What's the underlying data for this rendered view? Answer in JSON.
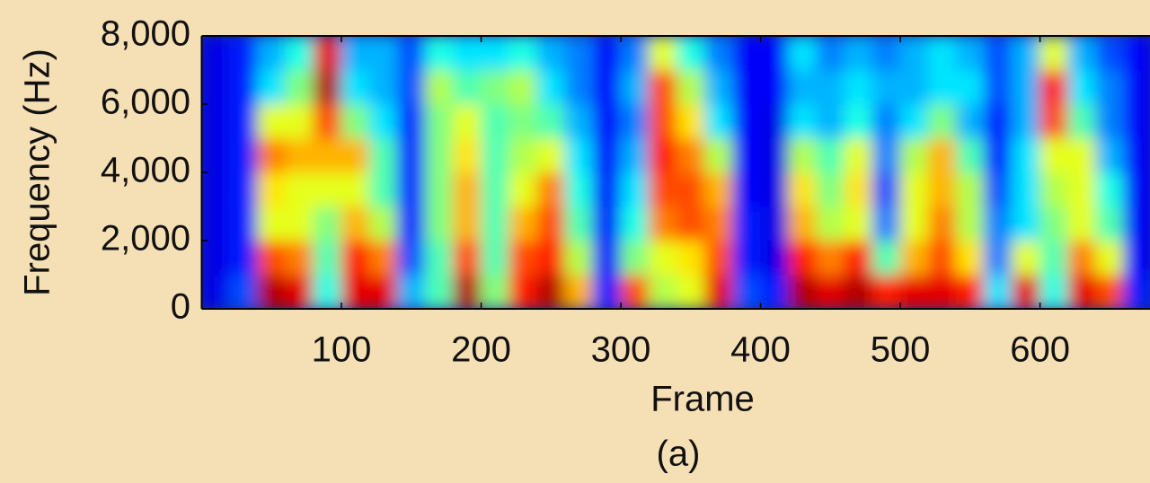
{
  "chart_data": {
    "type": "heatmap",
    "xlabel": "Frame",
    "ylabel": "Frequency (Hz)",
    "caption": "(a)",
    "colormap": "jet",
    "xlim": [
      0,
      680
    ],
    "ylim": [
      0,
      8000
    ],
    "xticks": [
      100,
      200,
      300,
      400,
      500,
      600
    ],
    "yticks": [
      0,
      {
        "value": 2000,
        "label": "2,000"
      },
      {
        "value": 4000,
        "label": "4,000"
      },
      {
        "value": 6000,
        "label": "6,000"
      },
      {
        "value": 8000,
        "label": "8,000"
      }
    ],
    "x": [
      10,
      30,
      50,
      70,
      90,
      110,
      130,
      150,
      170,
      190,
      210,
      230,
      250,
      270,
      290,
      310,
      330,
      350,
      370,
      390,
      410,
      430,
      450,
      470,
      490,
      510,
      530,
      550,
      570,
      590,
      610,
      630,
      650,
      670
    ],
    "y": [
      500,
      1500,
      2500,
      3500,
      4500,
      5500,
      6500,
      7500
    ],
    "z": [
      [
        0.1,
        0.1,
        0.1,
        0.1,
        0.1,
        0.1,
        0.1,
        0.1
      ],
      [
        0.2,
        0.15,
        0.15,
        0.15,
        0.15,
        0.15,
        0.15,
        0.15
      ],
      [
        0.95,
        0.8,
        0.6,
        0.65,
        0.75,
        0.6,
        0.35,
        0.3
      ],
      [
        0.9,
        0.75,
        0.6,
        0.6,
        0.7,
        0.6,
        0.5,
        0.4
      ],
      [
        0.4,
        0.45,
        0.5,
        0.6,
        0.7,
        0.8,
        0.95,
        0.9
      ],
      [
        0.9,
        0.85,
        0.7,
        0.6,
        0.7,
        0.5,
        0.35,
        0.3
      ],
      [
        0.9,
        0.75,
        0.55,
        0.45,
        0.45,
        0.35,
        0.3,
        0.3
      ],
      [
        0.3,
        0.2,
        0.15,
        0.15,
        0.15,
        0.15,
        0.2,
        0.2
      ],
      [
        0.45,
        0.45,
        0.5,
        0.5,
        0.5,
        0.5,
        0.55,
        0.4
      ],
      [
        0.95,
        0.8,
        0.7,
        0.7,
        0.65,
        0.6,
        0.45,
        0.35
      ],
      [
        0.5,
        0.45,
        0.45,
        0.45,
        0.45,
        0.45,
        0.5,
        0.35
      ],
      [
        0.85,
        0.8,
        0.7,
        0.6,
        0.55,
        0.5,
        0.55,
        0.4
      ],
      [
        0.95,
        0.85,
        0.8,
        0.75,
        0.6,
        0.45,
        0.35,
        0.3
      ],
      [
        0.7,
        0.55,
        0.45,
        0.4,
        0.35,
        0.3,
        0.25,
        0.25
      ],
      [
        0.15,
        0.12,
        0.12,
        0.12,
        0.12,
        0.12,
        0.12,
        0.12
      ],
      [
        0.8,
        0.5,
        0.4,
        0.35,
        0.3,
        0.25,
        0.3,
        0.25
      ],
      [
        0.55,
        0.6,
        0.75,
        0.8,
        0.85,
        0.8,
        0.8,
        0.6
      ],
      [
        0.6,
        0.65,
        0.8,
        0.8,
        0.75,
        0.65,
        0.55,
        0.4
      ],
      [
        0.9,
        0.8,
        0.75,
        0.7,
        0.55,
        0.35,
        0.3,
        0.25
      ],
      [
        0.2,
        0.15,
        0.15,
        0.12,
        0.12,
        0.12,
        0.12,
        0.12
      ],
      [
        0.15,
        0.1,
        0.1,
        0.1,
        0.1,
        0.1,
        0.12,
        0.12
      ],
      [
        0.95,
        0.85,
        0.7,
        0.65,
        0.55,
        0.35,
        0.3,
        0.35
      ],
      [
        0.9,
        0.75,
        0.55,
        0.5,
        0.45,
        0.3,
        0.3,
        0.25
      ],
      [
        0.95,
        0.85,
        0.6,
        0.65,
        0.6,
        0.4,
        0.35,
        0.3
      ],
      [
        0.85,
        0.45,
        0.25,
        0.2,
        0.25,
        0.25,
        0.3,
        0.25
      ],
      [
        0.9,
        0.7,
        0.6,
        0.6,
        0.55,
        0.35,
        0.3,
        0.3
      ],
      [
        0.9,
        0.8,
        0.75,
        0.7,
        0.7,
        0.5,
        0.35,
        0.35
      ],
      [
        0.85,
        0.65,
        0.55,
        0.55,
        0.45,
        0.3,
        0.35,
        0.3
      ],
      [
        0.35,
        0.25,
        0.25,
        0.2,
        0.15,
        0.15,
        0.2,
        0.2
      ],
      [
        0.9,
        0.6,
        0.35,
        0.35,
        0.35,
        0.3,
        0.3,
        0.3
      ],
      [
        0.4,
        0.45,
        0.5,
        0.55,
        0.6,
        0.8,
        0.85,
        0.6
      ],
      [
        0.9,
        0.75,
        0.6,
        0.6,
        0.6,
        0.45,
        0.35,
        0.3
      ],
      [
        0.8,
        0.6,
        0.45,
        0.4,
        0.3,
        0.25,
        0.25,
        0.2
      ],
      [
        0.15,
        0.12,
        0.12,
        0.12,
        0.12,
        0.12,
        0.12,
        0.12
      ]
    ]
  }
}
